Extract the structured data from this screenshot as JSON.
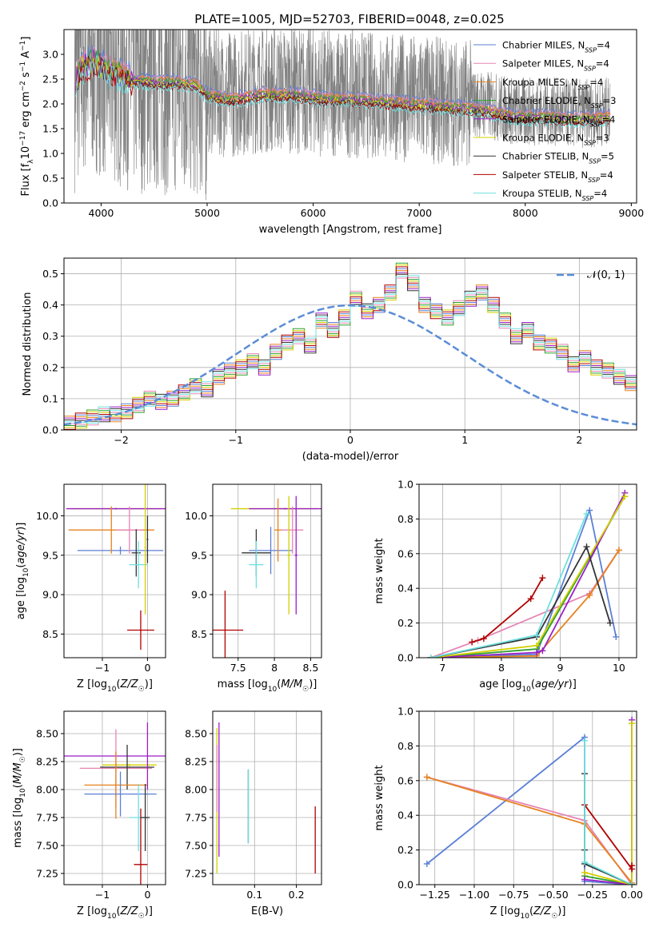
{
  "figure": {
    "title": "PLATE=1005, MJD=52703, FIBERID=0048, z=0.025"
  },
  "colors": {
    "Chabrier MILES": "#5b7fd6",
    "Salpeter MILES": "#e685b5",
    "Kroupa MILES": "#e6821e",
    "Chabrier ELODIE": "#2ca02c",
    "Salpeter ELODIE": "#9b1fc7",
    "Kroupa ELODIE": "#d4d000",
    "Chabrier STELIB": "#333333",
    "Salpeter STELIB": "#b20000",
    "Kroupa STELIB": "#6ee0e0",
    "data": "#808080",
    "gaussian": "#5b8dd6"
  },
  "chart_data": [
    {
      "id": "spectrum",
      "type": "line",
      "title": "PLATE=1005, MJD=52703, FIBERID=0048, z=0.025",
      "xlabel": "wavelength [Angstrom, rest frame]",
      "ylabel": "Flux [f_λ 10^-17 erg cm^-2 s^-1 A^-1]",
      "xlim": [
        3650,
        9050
      ],
      "ylim": [
        0,
        3.5
      ],
      "xticks": [
        4000,
        5000,
        6000,
        7000,
        8000,
        9000
      ],
      "yticks": [
        0.0,
        0.5,
        1.0,
        1.5,
        2.0,
        2.5,
        3.0
      ],
      "legend_position": "top-right",
      "legend": [
        {
          "name": "Chabrier MILES",
          "nssp": "4"
        },
        {
          "name": "Salpeter MILES",
          "nssp": "4"
        },
        {
          "name": "Kroupa MILES",
          "nssp": "4"
        },
        {
          "name": "Chabrier ELODIE",
          "nssp": "3"
        },
        {
          "name": "Salpeter ELODIE",
          "nssp": "4"
        },
        {
          "name": "Kroupa ELODIE",
          "nssp": "3"
        },
        {
          "name": "Chabrier STELIB",
          "nssp": "5"
        },
        {
          "name": "Salpeter STELIB",
          "nssp": "4"
        },
        {
          "name": "Kroupa STELIB",
          "nssp": "4"
        }
      ],
      "model_shape": {
        "wavelength": [
          3750,
          3850,
          3950,
          4100,
          4300,
          4500,
          4700,
          4900,
          5000,
          5200,
          5500,
          5800,
          6100,
          6400,
          6700,
          7000,
          7300,
          7600,
          7900,
          8200,
          8500,
          8800
        ],
        "flux": [
          2.6,
          2.9,
          3.0,
          2.75,
          2.6,
          2.55,
          2.55,
          2.5,
          2.3,
          2.2,
          2.3,
          2.3,
          2.22,
          2.2,
          2.15,
          2.1,
          2.05,
          2.0,
          1.85,
          1.85,
          1.8,
          1.85
        ]
      },
      "data_series": {
        "name": "data",
        "wavelength_range": [
          3750,
          8800
        ],
        "ylim_clip": [
          0,
          3.5
        ]
      }
    },
    {
      "id": "residuals",
      "type": "bar",
      "xlabel": "(data-model)/error",
      "ylabel": "Normed distribution",
      "xlim": [
        -2.5,
        2.5
      ],
      "ylim": [
        0,
        0.55
      ],
      "xticks": [
        -2,
        -1,
        0,
        1,
        2
      ],
      "yticks": [
        0.0,
        0.1,
        0.2,
        0.3,
        0.4,
        0.5
      ],
      "legend_position": "top-right",
      "gaussian_label": "𝒩(0, 1)",
      "bin_edges_start": -2.5,
      "bin_width": 0.1,
      "hist_values": [
        0.02,
        0.03,
        0.04,
        0.05,
        0.05,
        0.06,
        0.08,
        0.1,
        0.09,
        0.1,
        0.12,
        0.14,
        0.13,
        0.17,
        0.19,
        0.2,
        0.22,
        0.2,
        0.25,
        0.28,
        0.3,
        0.27,
        0.35,
        0.32,
        0.36,
        0.42,
        0.38,
        0.4,
        0.44,
        0.51,
        0.47,
        0.4,
        0.38,
        0.36,
        0.39,
        0.42,
        0.44,
        0.4,
        0.35,
        0.3,
        0.32,
        0.28,
        0.27,
        0.25,
        0.21,
        0.23,
        0.2,
        0.19,
        0.17,
        0.15,
        0.16,
        0.13,
        0.12,
        0.1,
        0.09,
        0.1,
        0.07,
        0.06,
        0.05,
        0.04,
        0.04,
        0.03,
        0.03
      ]
    },
    {
      "id": "age_vs_Z",
      "type": "scatter",
      "xlabel": "Z [log10(Z/Z☉)]",
      "ylabel": "age [log10(age/yr)]",
      "xlim": [
        -1.85,
        0.4
      ],
      "ylim": [
        8.2,
        10.4
      ],
      "xticks": [
        -1,
        0
      ],
      "yticks": [
        8.5,
        9.0,
        9.5,
        10.0
      ],
      "points": [
        {
          "series": "Kroupa ELODIE",
          "x": -0.7,
          "y": 10.09,
          "xerr": 1.0,
          "yerr": 0.01
        },
        {
          "series": "Salpeter ELODIE",
          "x": -0.7,
          "y": 10.09,
          "xerr": 1.1,
          "yerr": 0.01
        },
        {
          "series": "Chabrier MILES",
          "x": -0.6,
          "y": 9.56,
          "xerr": 0.95,
          "yerr": 0.05
        },
        {
          "series": "Kroupa MILES",
          "x": -0.8,
          "y": 9.82,
          "xerr": 0.95,
          "yerr": 0.3
        },
        {
          "series": "Salpeter MILES",
          "x": -0.4,
          "y": 9.82,
          "xerr": 0.3,
          "yerr": 0.3
        },
        {
          "series": "Chabrier STELIB",
          "x": -0.25,
          "y": 9.53,
          "xerr": 0.1,
          "yerr": 0.3
        },
        {
          "series": "Kroupa STELIB",
          "x": -0.2,
          "y": 9.38,
          "xerr": 0.2,
          "yerr": 0.3
        },
        {
          "series": "Salpeter STELIB",
          "x": -0.15,
          "y": 8.55,
          "xerr": 0.3,
          "yerr": 0.25
        },
        {
          "series": "Kroupa ELODIE",
          "x": -0.05,
          "y": 9.6,
          "xerr": 0.02,
          "yerr": 0.85
        },
        {
          "series": "Chabrier STELIB",
          "x": 0.0,
          "y": 9.7,
          "xerr": 0.02,
          "yerr": 0.3
        }
      ]
    },
    {
      "id": "age_vs_mass",
      "type": "scatter",
      "xlabel": "mass [log10(M/M☉)]",
      "ylabel": "",
      "xlim": [
        7.15,
        8.65
      ],
      "ylim": [
        8.2,
        10.4
      ],
      "xticks": [
        7.5,
        8.0,
        8.5
      ],
      "yticks": [
        8.5,
        9.0,
        9.5,
        10.0
      ],
      "points": [
        {
          "series": "Kroupa ELODIE",
          "x": 8.0,
          "y": 10.09,
          "xerr": 0.6,
          "yerr": 0.01
        },
        {
          "series": "Salpeter ELODIE",
          "x": 8.15,
          "y": 10.09,
          "xerr": 0.5,
          "yerr": 0.01
        },
        {
          "series": "Chabrier MILES",
          "x": 7.95,
          "y": 9.56,
          "xerr": 0.3,
          "yerr": 0.3
        },
        {
          "series": "Kroupa MILES",
          "x": 8.05,
          "y": 9.82,
          "xerr": 0.05,
          "yerr": 0.4
        },
        {
          "series": "Salpeter MILES",
          "x": 8.25,
          "y": 9.82,
          "xerr": 0.15,
          "yerr": 0.3
        },
        {
          "series": "Chabrier STELIB",
          "x": 7.75,
          "y": 9.53,
          "xerr": 0.2,
          "yerr": 0.3
        },
        {
          "series": "Kroupa STELIB",
          "x": 7.75,
          "y": 9.38,
          "xerr": 0.1,
          "yerr": 0.3
        },
        {
          "series": "Salpeter STELIB",
          "x": 7.32,
          "y": 8.55,
          "xerr": 0.25,
          "yerr": 0.5
        },
        {
          "series": "Kroupa ELODIE",
          "x": 8.2,
          "y": 9.5,
          "xerr": 0.02,
          "yerr": 0.75
        },
        {
          "series": "Salpeter ELODIE",
          "x": 8.3,
          "y": 9.5,
          "xerr": 0.02,
          "yerr": 0.75
        }
      ]
    },
    {
      "id": "massweight_vs_age",
      "type": "line",
      "xlabel": "age [log10(age/yr)]",
      "ylabel": "mass weight",
      "xlim": [
        6.6,
        10.3
      ],
      "ylim": [
        0.0,
        1.0
      ],
      "xticks": [
        7,
        8,
        9,
        10
      ],
      "yticks": [
        0.0,
        0.2,
        0.4,
        0.6,
        0.8,
        1.0
      ],
      "series": [
        {
          "name": "Chabrier MILES",
          "x": [
            6.8,
            8.6,
            9.5,
            9.95
          ],
          "y": [
            0.0,
            0.02,
            0.85,
            0.12
          ]
        },
        {
          "name": "Salpeter MILES",
          "x": [
            6.8,
            7.6,
            9.5,
            10.0
          ],
          "y": [
            0.0,
            0.1,
            0.37,
            0.62
          ]
        },
        {
          "name": "Kroupa MILES",
          "x": [
            6.8,
            8.6,
            9.5,
            10.0
          ],
          "y": [
            0.0,
            0.01,
            0.36,
            0.62
          ]
        },
        {
          "name": "Chabrier ELODIE",
          "x": [
            6.8,
            8.6,
            10.1
          ],
          "y": [
            0.0,
            0.05,
            0.93
          ]
        },
        {
          "name": "Salpeter ELODIE",
          "x": [
            6.8,
            8.6,
            8.7,
            10.1
          ],
          "y": [
            0.0,
            0.03,
            0.04,
            0.95
          ]
        },
        {
          "name": "Kroupa ELODIE",
          "x": [
            6.8,
            8.6,
            10.1
          ],
          "y": [
            0.0,
            0.07,
            0.93
          ]
        },
        {
          "name": "Chabrier STELIB",
          "x": [
            6.8,
            8.6,
            9.45,
            9.85
          ],
          "y": [
            0.0,
            0.12,
            0.64,
            0.2
          ]
        },
        {
          "name": "Salpeter STELIB",
          "x": [
            7.5,
            7.7,
            8.5,
            8.7
          ],
          "y": [
            0.09,
            0.11,
            0.34,
            0.46
          ]
        },
        {
          "name": "Kroupa STELIB",
          "x": [
            6.8,
            8.6,
            9.45
          ],
          "y": [
            0.0,
            0.13,
            0.83
          ]
        }
      ]
    },
    {
      "id": "mass_vs_Z",
      "type": "scatter",
      "xlabel": "Z [log10(Z/Z☉)]",
      "ylabel": "mass [log10(M/M☉)]",
      "xlim": [
        -1.85,
        0.4
      ],
      "ylim": [
        7.15,
        8.7
      ],
      "xticks": [
        -1,
        0
      ],
      "yticks": [
        7.25,
        7.5,
        7.75,
        8.0,
        8.25,
        8.5
      ],
      "points": [
        {
          "series": "Salpeter ELODIE",
          "x": -0.7,
          "y": 8.3,
          "xerr": 1.15,
          "yerr": 0.01
        },
        {
          "series": "Kroupa ELODIE",
          "x": -0.4,
          "y": 8.22,
          "xerr": 0.6,
          "yerr": 0.01
        },
        {
          "series": "Salpeter MILES",
          "x": -0.7,
          "y": 8.19,
          "xerr": 0.8,
          "yerr": 0.35
        },
        {
          "series": "Chabrier STELIB",
          "x": -0.45,
          "y": 8.2,
          "xerr": 0.6,
          "yerr": 0.2
        },
        {
          "series": "Kroupa MILES",
          "x": -0.7,
          "y": 8.04,
          "xerr": 0.7,
          "yerr": 0.3
        },
        {
          "series": "Chabrier MILES",
          "x": -0.6,
          "y": 7.96,
          "xerr": 0.8,
          "yerr": 0.2
        },
        {
          "series": "Kroupa STELIB",
          "x": -0.2,
          "y": 7.75,
          "xerr": 0.2,
          "yerr": 0.3
        },
        {
          "series": "Salpeter STELIB",
          "x": -0.15,
          "y": 7.33,
          "xerr": 0.15,
          "yerr": 0.5
        },
        {
          "series": "Chabrier STELIB",
          "x": -0.05,
          "y": 7.75,
          "xerr": 0.1,
          "yerr": 0.3
        },
        {
          "series": "Salpeter ELODIE",
          "x": 0.0,
          "y": 8.3,
          "xerr": 0.02,
          "yerr": 0.3
        }
      ]
    },
    {
      "id": "mass_vs_ebv",
      "type": "scatter",
      "xlabel": "E(B-V)",
      "ylabel": "",
      "xlim": [
        0.0,
        0.26
      ],
      "ylim": [
        7.15,
        8.7
      ],
      "xticks": [
        0.1,
        0.2
      ],
      "yticks": [
        7.25,
        7.5,
        7.75,
        8.0,
        8.25,
        8.5
      ],
      "points": [
        {
          "series": "Kroupa ELODIE",
          "x": 0.01,
          "y": 7.9,
          "xerr": 0.0,
          "yerr": 0.65
        },
        {
          "series": "Salpeter ELODIE",
          "x": 0.015,
          "y": 8.0,
          "xerr": 0.0,
          "yerr": 0.6
        },
        {
          "series": "Salpeter MILES",
          "x": 0.01,
          "y": 8.1,
          "xerr": 0.0,
          "yerr": 0.3
        },
        {
          "series": "Chabrier STELIB",
          "x": 0.085,
          "y": 7.85,
          "xerr": 0.0,
          "yerr": 0.33
        },
        {
          "series": "Kroupa STELIB",
          "x": 0.085,
          "y": 7.85,
          "xerr": 0.0,
          "yerr": 0.33
        },
        {
          "series": "Salpeter STELIB",
          "x": 0.245,
          "y": 7.55,
          "xerr": 0.0,
          "yerr": 0.3
        }
      ]
    },
    {
      "id": "massweight_vs_Z",
      "type": "line",
      "xlabel": "Z [log10(Z/Z☉)]",
      "ylabel": "mass weight",
      "xlim": [
        -1.35,
        0.03
      ],
      "ylim": [
        0.0,
        1.0
      ],
      "xticks": [
        -1.25,
        -1.0,
        -0.75,
        -0.5,
        -0.25,
        0.0
      ],
      "yticks": [
        0.0,
        0.2,
        0.4,
        0.6,
        0.8,
        1.0
      ],
      "series": [
        {
          "name": "Chabrier MILES",
          "x": [
            -1.3,
            -0.3,
            -0.3,
            -0.01
          ],
          "y": [
            0.12,
            0.85,
            0.02,
            0.0
          ]
        },
        {
          "name": "Salpeter MILES",
          "x": [
            -1.3,
            -0.3,
            0.0
          ],
          "y": [
            0.62,
            0.37,
            0.0
          ]
        },
        {
          "name": "Kroupa MILES",
          "x": [
            -1.3,
            -0.3,
            0.0
          ],
          "y": [
            0.62,
            0.35,
            0.01
          ]
        },
        {
          "name": "Chabrier ELODIE",
          "x": [
            -0.3,
            0.0,
            0.0
          ],
          "y": [
            0.05,
            0.0,
            0.93
          ]
        },
        {
          "name": "Salpeter ELODIE",
          "x": [
            -0.3,
            0.0,
            0.0
          ],
          "y": [
            0.03,
            0.0,
            0.95
          ]
        },
        {
          "name": "Kroupa ELODIE",
          "x": [
            -0.3,
            0.0,
            0.0
          ],
          "y": [
            0.07,
            0.0,
            0.93
          ]
        },
        {
          "name": "Chabrier STELIB",
          "x": [
            -0.3,
            -0.3,
            -0.3,
            0.0
          ],
          "y": [
            0.64,
            0.2,
            0.12,
            0.0
          ]
        },
        {
          "name": "Salpeter STELIB",
          "x": [
            -0.3,
            0.0,
            0.0
          ],
          "y": [
            0.46,
            0.09,
            0.11
          ]
        },
        {
          "name": "Kroupa STELIB",
          "x": [
            -0.3,
            -0.3,
            0.0
          ],
          "y": [
            0.83,
            0.13,
            0.0
          ]
        }
      ]
    }
  ]
}
